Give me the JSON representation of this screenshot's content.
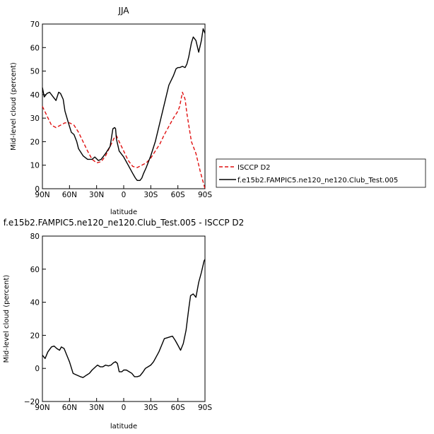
{
  "chart_data": [
    {
      "type": "line",
      "title": "JJA",
      "xlabel": "latitude",
      "ylabel": "Mid-level cloud (percent)",
      "xlim": [
        90,
        -90
      ],
      "ylim": [
        0,
        70
      ],
      "x_ticks": [
        90,
        60,
        30,
        0,
        -30,
        -60,
        -90
      ],
      "x_tick_labels": [
        "90N",
        "60N",
        "30N",
        "0",
        "30S",
        "60S",
        "90S"
      ],
      "y_ticks": [
        0,
        10,
        20,
        30,
        40,
        50,
        60,
        70
      ],
      "y_tick_labels": [
        "0",
        "10",
        "20",
        "30",
        "40",
        "50",
        "60",
        "70"
      ],
      "legend": {
        "placement": "right"
      },
      "series": [
        {
          "name": "ISCCP D2",
          "color": "#e01010",
          "dash": true,
          "x": [
            90,
            85,
            80,
            75,
            70,
            65,
            60,
            55,
            50,
            45,
            40,
            35,
            30,
            25,
            20,
            15,
            10,
            8,
            5,
            0,
            -5,
            -10,
            -15,
            -20,
            -25,
            -30,
            -35,
            -40,
            -45,
            -50,
            -55,
            -60,
            -62,
            -65,
            -68,
            -70,
            -75,
            -80,
            -85,
            -90
          ],
          "y": [
            35,
            31,
            27,
            26,
            27,
            28,
            28,
            27,
            24,
            20,
            16,
            12.5,
            11,
            11.5,
            14,
            18,
            22,
            22.5,
            20,
            16,
            12,
            9.5,
            9,
            10,
            11,
            13,
            16,
            19,
            23,
            26.5,
            30,
            33,
            35,
            41,
            38,
            32,
            20,
            15,
            7,
            0
          ]
        },
        {
          "name": "f.e15b2.FAMPIC5.ne120_ne120.Club_Test.005",
          "color": "#000000",
          "dash": false,
          "x": [
            90,
            88,
            85,
            82,
            78,
            75,
            72,
            70,
            67,
            65,
            62,
            60,
            58,
            55,
            52,
            50,
            45,
            40,
            35,
            32,
            28,
            25,
            20,
            15,
            12,
            10,
            9,
            8,
            5,
            2,
            0,
            -5,
            -10,
            -13,
            -15,
            -18,
            -20,
            -22,
            -25,
            -30,
            -35,
            -40,
            -45,
            -50,
            -55,
            -58,
            -60,
            -62,
            -65,
            -68,
            -70,
            -72,
            -75,
            -77,
            -80,
            -83,
            -86,
            -88,
            -90
          ],
          "y": [
            43,
            39,
            40.5,
            41,
            39,
            37.5,
            41,
            40.5,
            38,
            33,
            29,
            26.5,
            24,
            23,
            20,
            17,
            14,
            12.5,
            12.5,
            13.5,
            12,
            12.5,
            15,
            18,
            25.5,
            26,
            25.5,
            21,
            16,
            14.5,
            13.5,
            10,
            6.5,
            4.5,
            3.5,
            3.5,
            4.5,
            6.5,
            9,
            14,
            20,
            28,
            36,
            44,
            48,
            51,
            51.5,
            51.5,
            52,
            51.5,
            53,
            56,
            62,
            64.5,
            63,
            58,
            63,
            68,
            66
          ]
        }
      ]
    },
    {
      "type": "line",
      "title": "f.e15b2.FAMPIC5.ne120_ne120.Club_Test.005 - ISCCP D2",
      "xlabel": "latitude",
      "ylabel": "Mid-level cloud (percent)",
      "xlim": [
        90,
        -90
      ],
      "ylim": [
        -20,
        80
      ],
      "x_ticks": [
        90,
        60,
        30,
        0,
        -30,
        -60,
        -90
      ],
      "x_tick_labels": [
        "90N",
        "60N",
        "30N",
        "0",
        "30S",
        "60S",
        "90S"
      ],
      "y_ticks": [
        -20,
        0,
        20,
        40,
        60,
        80
      ],
      "y_tick_labels": [
        "−20",
        "0",
        "20",
        "40",
        "60",
        "80"
      ],
      "series": [
        {
          "color": "#000000",
          "dash": false,
          "x": [
            90,
            87,
            84,
            80,
            77,
            74,
            71,
            69,
            66,
            63,
            60,
            56,
            52,
            48,
            45,
            41,
            38,
            35,
            32,
            29,
            26,
            23,
            20,
            17,
            14,
            11,
            9,
            7,
            5,
            2,
            0,
            -3,
            -6,
            -9,
            -12,
            -15,
            -18,
            -21,
            -24,
            -27,
            -30,
            -33,
            -36,
            -39,
            -42,
            -45,
            -48,
            -51,
            -54,
            -57,
            -60,
            -63,
            -66,
            -69,
            -72,
            -74,
            -77,
            -80,
            -83,
            -86,
            -89,
            -90
          ],
          "y": [
            8,
            6,
            10,
            13,
            13.5,
            12,
            11,
            13,
            12,
            8,
            4,
            -3,
            -4,
            -5,
            -5.5,
            -4,
            -3,
            -1,
            0.5,
            2,
            1,
            1,
            2,
            1.5,
            2,
            3.5,
            4,
            3,
            -2,
            -2,
            -1,
            -1,
            -2,
            -3,
            -5,
            -5,
            -4.5,
            -2.5,
            0,
            1,
            2,
            4,
            7,
            10,
            14,
            18,
            18.5,
            19,
            19.5,
            17,
            14,
            11,
            15,
            23,
            36,
            44,
            45,
            43,
            52,
            58,
            65,
            66
          ]
        }
      ]
    }
  ]
}
